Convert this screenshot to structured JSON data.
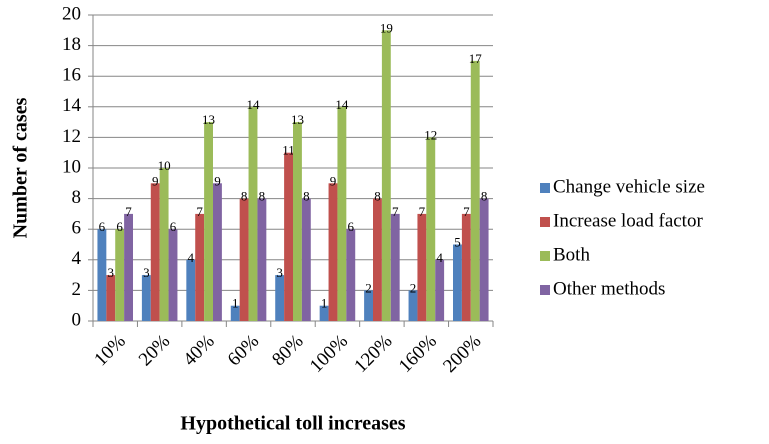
{
  "chart_data": {
    "type": "bar",
    "x_label": "Hypothetical toll increases",
    "y_label": "Number of cases",
    "categories": [
      "10%",
      "20%",
      "40%",
      "60%",
      "80%",
      "100%",
      "120%",
      "160%",
      "200%"
    ],
    "series": [
      {
        "name": "Change vehicle size",
        "color": "#4f81bd",
        "values": [
          6,
          3,
          4,
          1,
          3,
          1,
          2,
          2,
          5
        ]
      },
      {
        "name": "Increase load factor",
        "color": "#c0504d",
        "values": [
          3,
          9,
          7,
          8,
          11,
          9,
          8,
          7,
          7
        ]
      },
      {
        "name": "Both",
        "color": "#9bbb59",
        "values": [
          6,
          10,
          13,
          14,
          13,
          14,
          19,
          12,
          17
        ]
      },
      {
        "name": "Other methods",
        "color": "#8064a2",
        "values": [
          7,
          6,
          9,
          8,
          8,
          6,
          7,
          4,
          8
        ]
      }
    ],
    "ylim": [
      0,
      20
    ],
    "yticks": [
      0,
      2,
      4,
      6,
      8,
      10,
      12,
      14,
      16,
      18,
      20
    ],
    "grid": true,
    "legend": "right"
  }
}
